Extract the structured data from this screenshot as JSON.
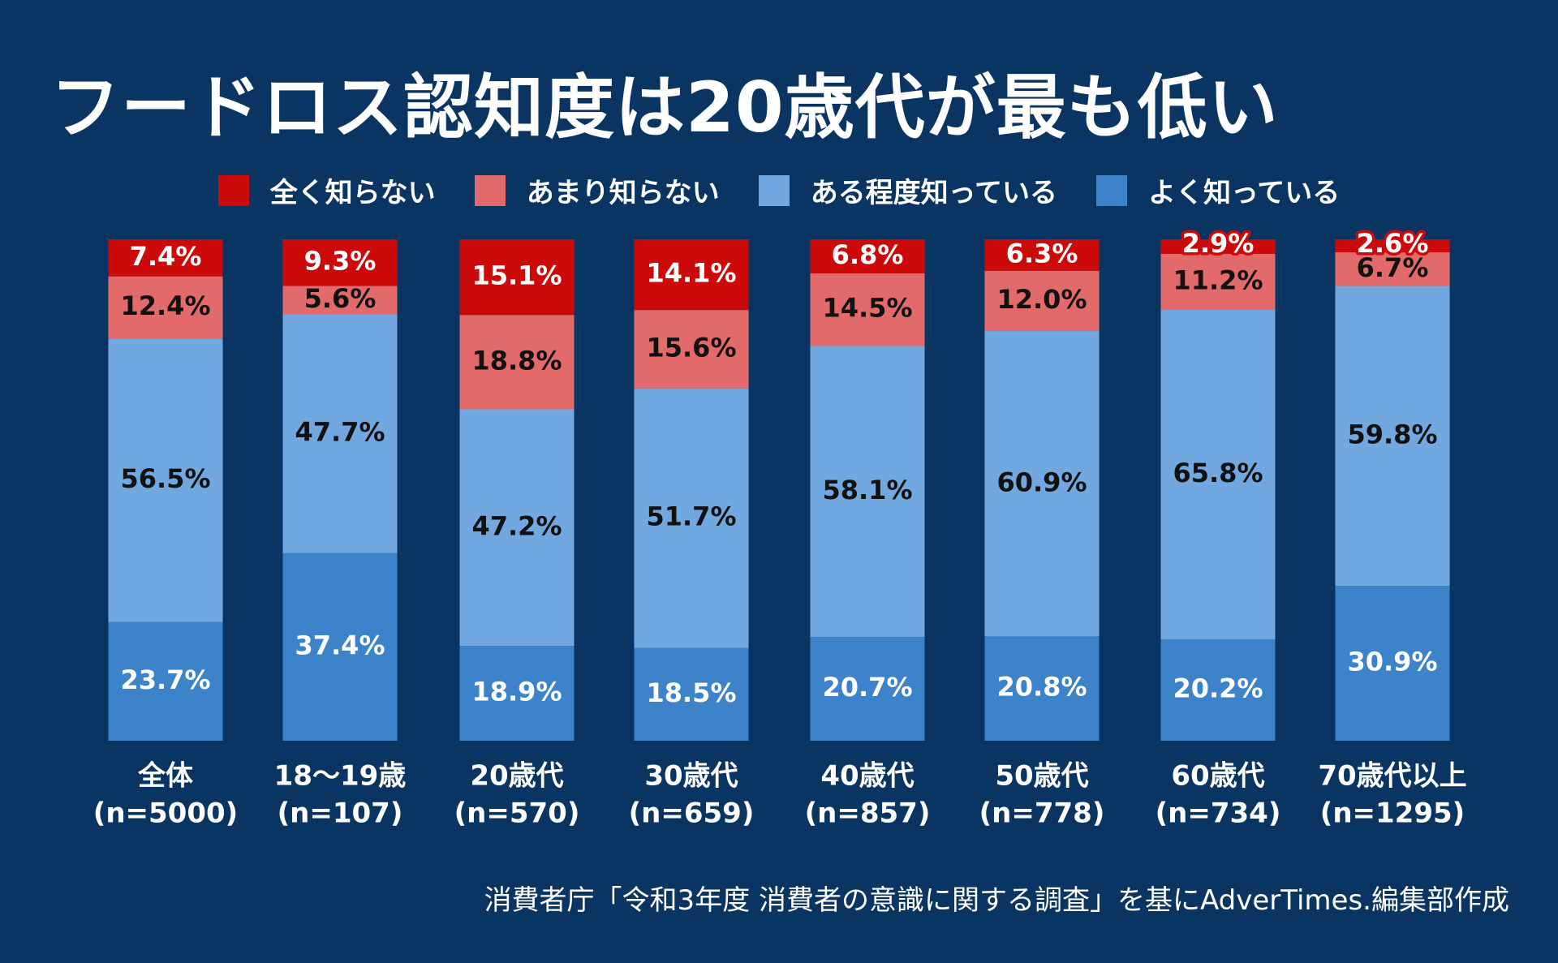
{
  "title": "フードロス認知度は20歳代が最も低い",
  "source": "消費者庁「令和3年度 消費者の意識に関する調査」を基にAdverTimes.編集部作成",
  "legend": [
    {
      "label": "全く知らない",
      "color": "#cc0a0a"
    },
    {
      "label": "あまり知らない",
      "color": "#e36a6a"
    },
    {
      "label": "ある程度知っている",
      "color": "#70a8df"
    },
    {
      "label": "よく知っている",
      "color": "#3c83c9"
    }
  ],
  "chart_data": {
    "type": "bar",
    "stacked": true,
    "title": "フードロス認知度は20歳代が最も低い",
    "categories": [
      "全体",
      "18〜19歳",
      "20歳代",
      "30歳代",
      "40歳代",
      "50歳代",
      "60歳代",
      "70歳代以上"
    ],
    "sample_sizes": [
      "(n=5000)",
      "(n=107)",
      "(n=570)",
      "(n=659)",
      "(n=857)",
      "(n=778)",
      "(n=734)",
      "(n=1295)"
    ],
    "series": [
      {
        "name": "全く知らない",
        "values": [
          7.4,
          9.3,
          15.1,
          14.1,
          6.8,
          6.3,
          2.9,
          2.6
        ],
        "labels": [
          "7.4%",
          "9.3%",
          "15.1%",
          "14.1%",
          "6.8%",
          "6.3%",
          "2.9%",
          "2.6%"
        ]
      },
      {
        "name": "あまり知らない",
        "values": [
          12.4,
          5.6,
          18.8,
          15.6,
          14.5,
          12.0,
          11.2,
          6.7
        ],
        "labels": [
          "12.4%",
          "5.6%",
          "18.8%",
          "15.6%",
          "14.5%",
          "12.0%",
          "11.2%",
          "6.7%"
        ]
      },
      {
        "name": "ある程度知っている",
        "values": [
          56.5,
          47.7,
          47.2,
          51.7,
          58.1,
          60.9,
          65.8,
          59.8
        ],
        "labels": [
          "56.5%",
          "47.7%",
          "47.2%",
          "51.7%",
          "58.1%",
          "60.9%",
          "65.8%",
          "59.8%"
        ]
      },
      {
        "name": "よく知っている",
        "values": [
          23.7,
          37.4,
          18.9,
          18.5,
          20.7,
          20.8,
          20.2,
          30.9
        ],
        "labels": [
          "23.7%",
          "37.4%",
          "18.9%",
          "18.5%",
          "20.7%",
          "20.8%",
          "20.2%",
          "30.9%"
        ]
      }
    ],
    "ylim": [
      0,
      100
    ],
    "grid": false,
    "legend_position": "top"
  }
}
